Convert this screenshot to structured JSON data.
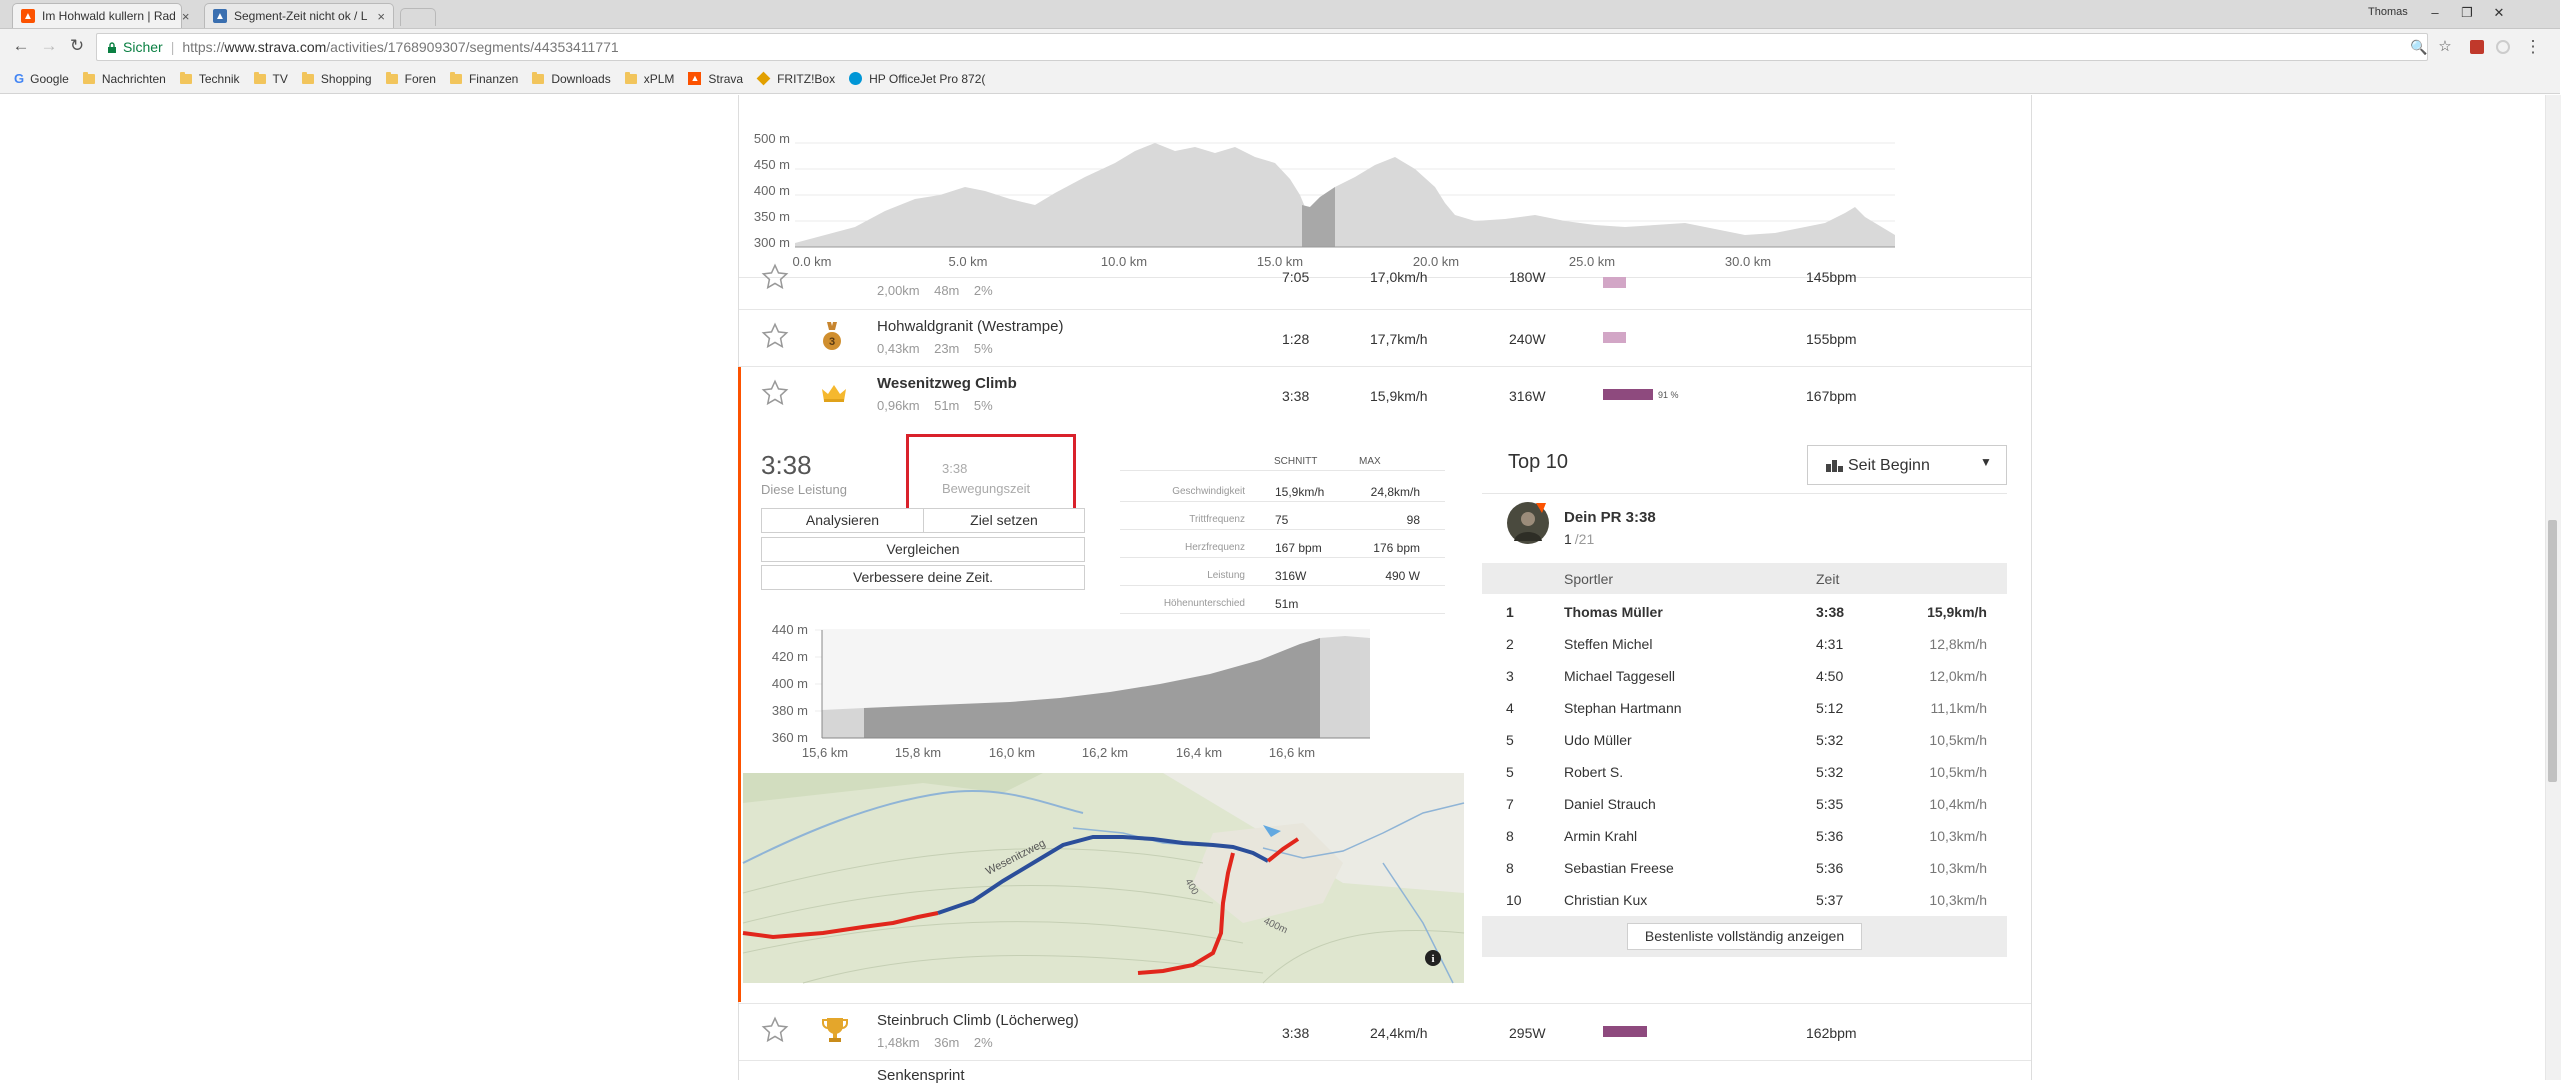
{
  "browser": {
    "tabs": [
      {
        "title": "Im Hohwald kullern | Rad",
        "active": true
      },
      {
        "title": "Segment-Zeit nicht ok / L",
        "active": false
      }
    ],
    "profile": "Thomas",
    "security_label": "Sicher",
    "url_scheme": "https://",
    "url_host": "www.strava.com",
    "url_path": "/activities/1768909307/segments/44353411771",
    "bookmarks": [
      "Google",
      "Nachrichten",
      "Technik",
      "TV",
      "Shopping",
      "Foren",
      "Finanzen",
      "Downloads",
      "xPLM",
      "Strava",
      "FRITZ!Box",
      "HP OfficeJet Pro 872("
    ]
  },
  "elevation_profile": {
    "y_ticks": [
      "500 m",
      "450 m",
      "400 m",
      "350 m",
      "300 m"
    ],
    "x_ticks": [
      "0.0 km",
      "5.0 km",
      "10.0 km",
      "15.0 km",
      "20.0 km",
      "25.0 km",
      "30.0 km"
    ]
  },
  "segments": [
    {
      "distance": "2,00km",
      "elevation": "48m",
      "grade": "2%",
      "time": "7:05",
      "speed": "17,0km/h",
      "power": "180W",
      "hr": "145bpm"
    },
    {
      "name": "Hohwaldgranit (Westrampe)",
      "distance": "0,43km",
      "elevation": "23m",
      "grade": "5%",
      "time": "1:28",
      "speed": "17,7km/h",
      "power": "240W",
      "hr": "155bpm",
      "medal": "3"
    },
    {
      "name": "Wesenitzweg Climb",
      "distance": "0,96km",
      "elevation": "51m",
      "grade": "5%",
      "time": "3:38",
      "speed": "15,9km/h",
      "power": "316W",
      "hr": "167bpm",
      "bar_pct": "91 %"
    },
    {
      "name": "Steinbruch Climb (Löcherweg)",
      "distance": "1,48km",
      "elevation": "36m",
      "grade": "2%",
      "time": "3:38",
      "speed": "24,4km/h",
      "power": "295W",
      "hr": "162bpm"
    },
    {
      "name": "Senkensprint"
    }
  ],
  "detail": {
    "effort_time": "3:38",
    "effort_label": "Diese Leistung",
    "moving_time": "3:38",
    "moving_label": "Bewegungszeit",
    "buttons": {
      "analyze": "Analysieren",
      "goal": "Ziel setzen",
      "compare": "Vergleichen",
      "improve": "Verbessere deine Zeit."
    },
    "stats_headers": {
      "avg": "SCHNITT",
      "max": "MAX"
    },
    "stats": [
      {
        "label": "Geschwindigkeit",
        "avg": "15,9km/h",
        "max": "24,8km/h"
      },
      {
        "label": "Trittfrequenz",
        "avg": "75",
        "max": "98"
      },
      {
        "label": "Herzfrequenz",
        "avg": "167 bpm",
        "max": "176 bpm"
      },
      {
        "label": "Leistung",
        "avg": "316W",
        "max": "490 W"
      },
      {
        "label": "Höhenunterschied",
        "avg": "51m",
        "max": ""
      }
    ],
    "mini_profile": {
      "y_ticks": [
        "440 m",
        "420 m",
        "400 m",
        "380 m",
        "360 m"
      ],
      "x_ticks": [
        "15,6 km",
        "15,8 km",
        "16,0 km",
        "16,2 km",
        "16,4 km",
        "16,6 km"
      ]
    },
    "map": {
      "road_label_1": "Wesenitzweg",
      "road_label_2": "400",
      "road_label_3": "400m",
      "info": "i"
    }
  },
  "top10": {
    "title": "Top 10",
    "filter": "Seit Beginn",
    "pr_title": "Dein PR 3:38",
    "pr_rank": "1",
    "pr_total": "/21",
    "headers": {
      "athlete": "Sportler",
      "time": "Zeit"
    },
    "rows": [
      {
        "rank": "1",
        "name": "Thomas Müller",
        "time": "3:38",
        "speed": "15,9km/h",
        "bold": true
      },
      {
        "rank": "2",
        "name": "Steffen Michel",
        "time": "4:31",
        "speed": "12,8km/h"
      },
      {
        "rank": "3",
        "name": "Michael Taggesell",
        "time": "4:50",
        "speed": "12,0km/h"
      },
      {
        "rank": "4",
        "name": "Stephan Hartmann",
        "time": "5:12",
        "speed": "11,1km/h"
      },
      {
        "rank": "5",
        "name": "Udo Müller",
        "time": "5:32",
        "speed": "10,5km/h"
      },
      {
        "rank": "5",
        "name": "Robert S.",
        "time": "5:32",
        "speed": "10,5km/h"
      },
      {
        "rank": "7",
        "name": "Daniel Strauch",
        "time": "5:35",
        "speed": "10,4km/h"
      },
      {
        "rank": "8",
        "name": "Armin Krahl",
        "time": "5:36",
        "speed": "10,3km/h"
      },
      {
        "rank": "8",
        "name": "Sebastian Freese",
        "time": "5:36",
        "speed": "10,3km/h"
      },
      {
        "rank": "10",
        "name": "Christian Kux",
        "time": "5:37",
        "speed": "10,3km/h"
      }
    ],
    "show_all": "Bestenliste vollständig anzeigen"
  },
  "colors": {
    "accent": "#fc5200",
    "highlight_box": "#d9212b",
    "bar_purple": "#8e4a7e",
    "bar_light": "#d2a6c6"
  }
}
